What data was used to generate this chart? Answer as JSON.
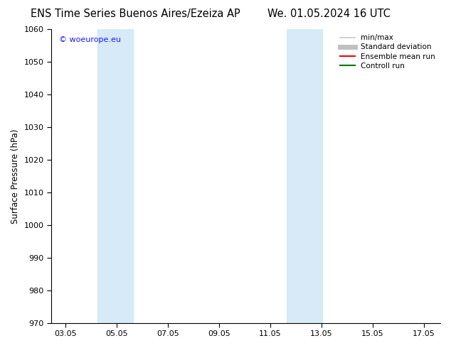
{
  "title_left": "ENS Time Series Buenos Aires/Ezeiza AP",
  "title_right": "We. 01.05.2024 16 UTC",
  "ylabel": "Surface Pressure (hPa)",
  "ylim": [
    970,
    1060
  ],
  "yticks": [
    970,
    980,
    990,
    1000,
    1010,
    1020,
    1030,
    1040,
    1050,
    1060
  ],
  "xlim_start": 2.5,
  "xlim_end": 17.7,
  "xtick_positions": [
    3.05,
    5.05,
    7.05,
    9.05,
    11.05,
    13.05,
    15.05,
    17.05
  ],
  "xtick_labels": [
    "03.05",
    "05.05",
    "07.05",
    "09.05",
    "11.05",
    "13.05",
    "15.05",
    "17.05"
  ],
  "shade_bands": [
    {
      "x_start": 4.3,
      "x_end": 5.7
    },
    {
      "x_start": 11.7,
      "x_end": 13.1
    }
  ],
  "shade_color": "#d6eaf8",
  "watermark_text": "© woeurope.eu",
  "watermark_color": "#1a1aff",
  "watermark_fontsize": 8,
  "legend_items": [
    {
      "label": "min/max",
      "color": "#c8c8c8",
      "lw": 1.2,
      "style": "-"
    },
    {
      "label": "Standard deviation",
      "color": "#c0c0c0",
      "lw": 5,
      "style": "-"
    },
    {
      "label": "Ensemble mean run",
      "color": "#ff0000",
      "lw": 1.5,
      "style": "-"
    },
    {
      "label": "Controll run",
      "color": "#007700",
      "lw": 1.5,
      "style": "-"
    }
  ],
  "title_fontsize": 10.5,
  "axis_label_fontsize": 8.5,
  "tick_fontsize": 8,
  "background_color": "#ffffff",
  "plot_bg_color": "#ffffff"
}
